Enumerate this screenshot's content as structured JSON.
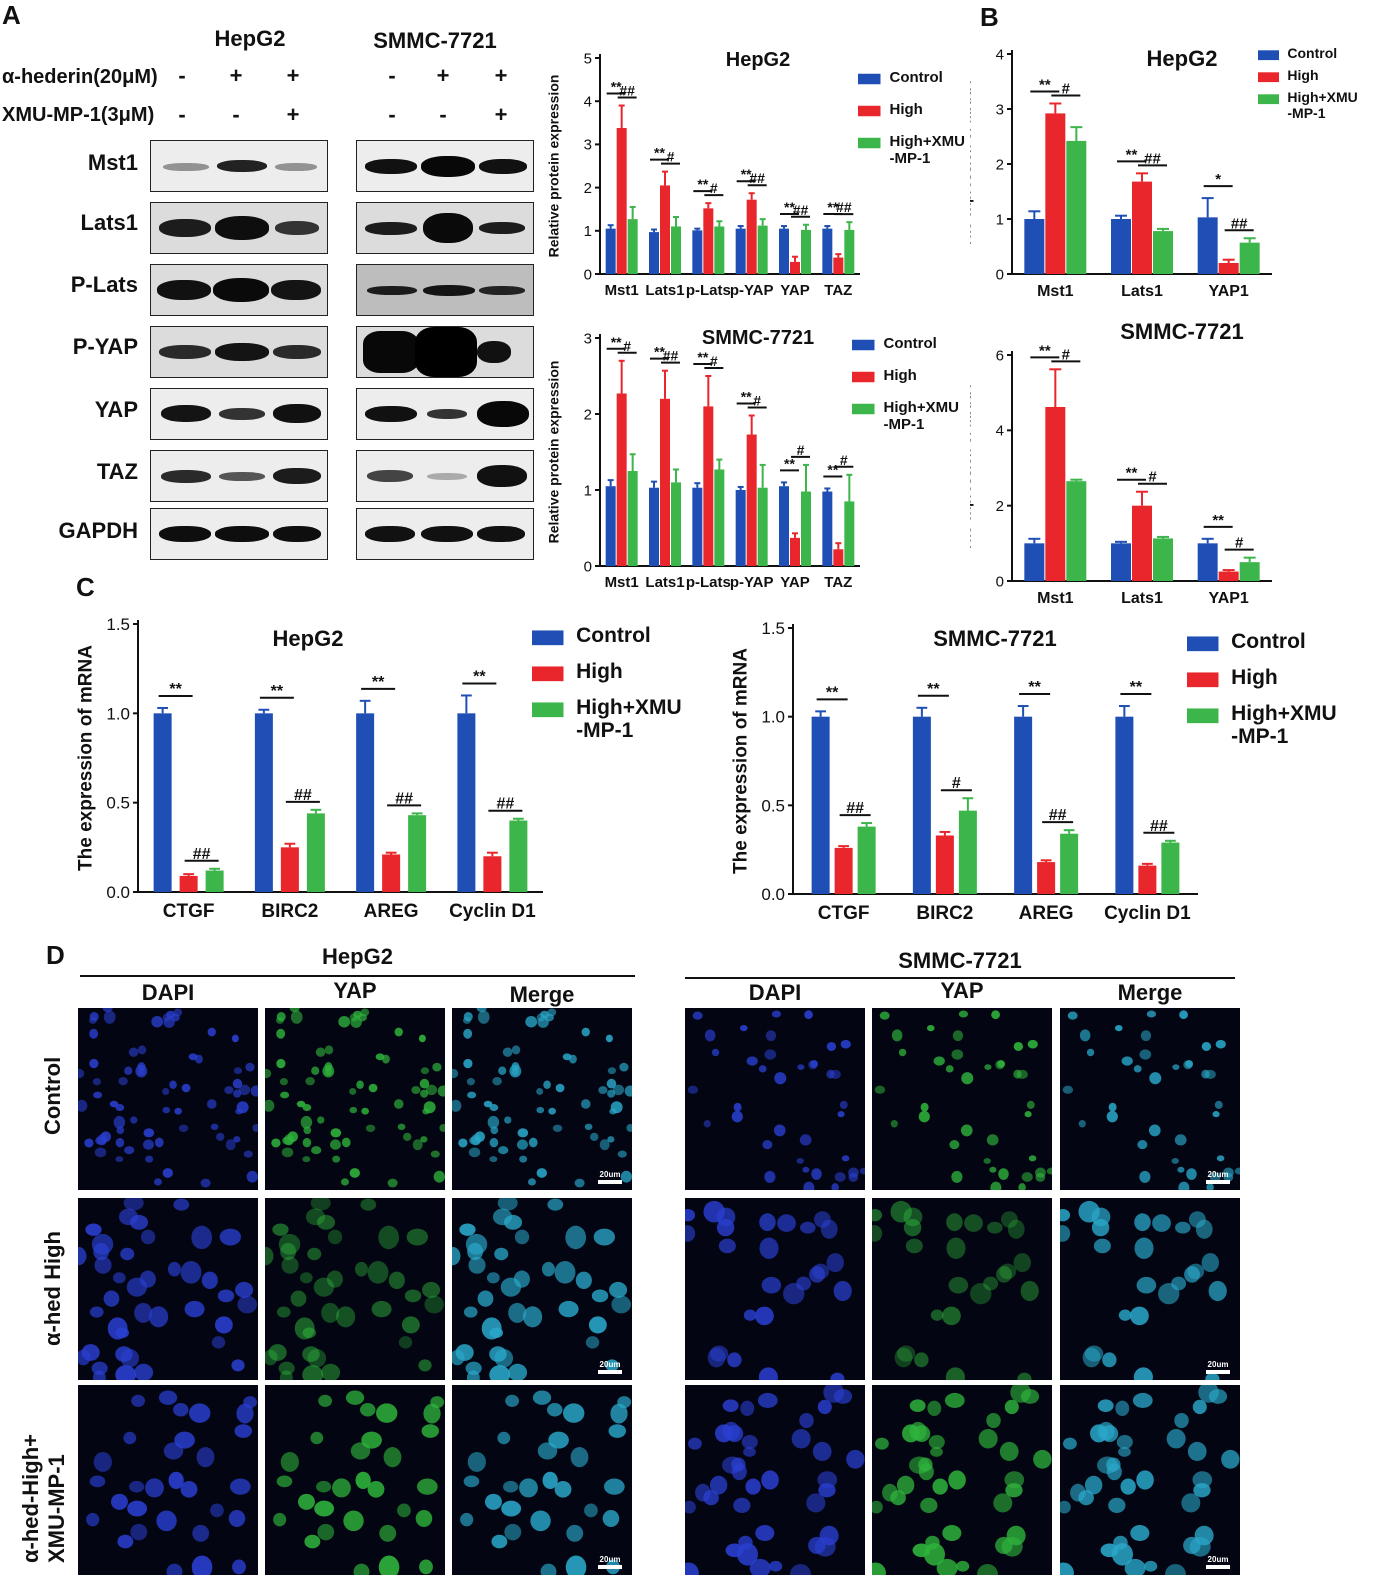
{
  "panels": {
    "a": "A",
    "b": "B",
    "c": "C",
    "d": "D"
  },
  "western_blot": {
    "cell_lines": [
      "HepG2",
      "SMMC-7721"
    ],
    "treatment_rows": [
      {
        "label": "α-hederin(20μM)",
        "signs": [
          "-",
          "+",
          "+"
        ]
      },
      {
        "label": "XMU-MP-1(3μM)",
        "signs": [
          "-",
          "-",
          "+"
        ]
      }
    ],
    "proteins": [
      "Mst1",
      "Lats1",
      "P-Lats",
      "P-YAP",
      "YAP",
      "TAZ",
      "GAPDH"
    ]
  },
  "chart_data": [
    {
      "id": "A-HepG2",
      "type": "bar",
      "title": "HepG2",
      "ylabel": "Relative protein expression",
      "ylim": [
        0,
        5
      ],
      "yticks": [
        0,
        1,
        2,
        3,
        4,
        5
      ],
      "categories": [
        "Mst1",
        "Lats1",
        "p-Lats",
        "p-YAP",
        "YAP",
        "TAZ"
      ],
      "series": [
        {
          "name": "Control",
          "color": "#1f4fb4",
          "values": [
            1.05,
            0.97,
            1.01,
            1.05,
            1.05,
            1.05
          ],
          "errors": [
            0.08,
            0.06,
            0.04,
            0.06,
            0.06,
            0.06
          ]
        },
        {
          "name": "High",
          "color": "#e8262b",
          "values": [
            3.38,
            2.05,
            1.52,
            1.72,
            0.28,
            0.38
          ],
          "errors": [
            0.52,
            0.32,
            0.12,
            0.15,
            0.12,
            0.08
          ]
        },
        {
          "name": "High+XMU\n-MP-1",
          "color": "#3cb54a",
          "values": [
            1.27,
            1.1,
            1.1,
            1.12,
            1.02,
            1.02
          ],
          "errors": [
            0.28,
            0.22,
            0.12,
            0.15,
            0.12,
            0.18
          ]
        }
      ],
      "significance": [
        {
          "a": "**",
          "b": "##"
        },
        {
          "a": "**",
          "b": "#"
        },
        {
          "a": "**",
          "b": "#"
        },
        {
          "a": "**",
          "b": "##"
        },
        {
          "a": "**",
          "b": "##"
        },
        {
          "a": "**",
          "b": "##"
        }
      ]
    },
    {
      "id": "A-SMMC",
      "type": "bar",
      "title": "SMMC-7721",
      "ylabel": "Relative protein expression",
      "ylim": [
        0,
        3
      ],
      "yticks": [
        0,
        1,
        2,
        3
      ],
      "categories": [
        "Mst1",
        "Lats1",
        "p-Lats",
        "p-YAP",
        "YAP",
        "TAZ"
      ],
      "series": [
        {
          "name": "Control",
          "color": "#1f4fb4",
          "values": [
            1.05,
            1.03,
            1.03,
            1.0,
            1.05,
            0.98
          ],
          "errors": [
            0.08,
            0.08,
            0.06,
            0.04,
            0.05,
            0.04
          ]
        },
        {
          "name": "High",
          "color": "#e8262b",
          "values": [
            2.27,
            2.2,
            2.1,
            1.73,
            0.37,
            0.22
          ],
          "errors": [
            0.43,
            0.37,
            0.4,
            0.25,
            0.06,
            0.08
          ]
        },
        {
          "name": "High+XMU\n-MP-1",
          "color": "#3cb54a",
          "values": [
            1.25,
            1.1,
            1.27,
            1.03,
            0.98,
            0.85
          ],
          "errors": [
            0.22,
            0.17,
            0.13,
            0.3,
            0.35,
            0.35
          ]
        }
      ],
      "significance": [
        {
          "a": "**",
          "b": "#"
        },
        {
          "a": "**",
          "b": "##"
        },
        {
          "a": "**",
          "b": "#"
        },
        {
          "a": "**",
          "b": "#"
        },
        {
          "a": "**",
          "b": "#"
        },
        {
          "a": "**",
          "b": "#"
        }
      ]
    },
    {
      "id": "B-HepG2",
      "type": "bar",
      "title": "HepG2",
      "ylabel": "The expression of  mRNA",
      "ylim": [
        0,
        4
      ],
      "yticks": [
        0,
        1,
        2,
        3,
        4
      ],
      "categories": [
        "Mst1",
        "Lats1",
        "YAP1"
      ],
      "series": [
        {
          "name": "Control",
          "color": "#1f4fb4",
          "values": [
            1.0,
            1.0,
            1.03
          ],
          "errors": [
            0.14,
            0.06,
            0.35
          ]
        },
        {
          "name": "High",
          "color": "#e8262b",
          "values": [
            2.92,
            1.68,
            0.2
          ],
          "errors": [
            0.18,
            0.15,
            0.06
          ]
        },
        {
          "name": "High+XMU\n-MP-1",
          "color": "#3cb54a",
          "values": [
            2.42,
            0.78,
            0.57
          ],
          "errors": [
            0.25,
            0.04,
            0.08
          ]
        }
      ],
      "significance": [
        {
          "a": "**",
          "b": "#"
        },
        {
          "a": "**",
          "b": "##"
        },
        {
          "a": "*",
          "b": "##"
        }
      ]
    },
    {
      "id": "B-SMMC",
      "type": "bar",
      "title": "SMMC-7721",
      "ylabel": "The expression of  mRNA",
      "ylim": [
        0,
        6
      ],
      "yticks": [
        0,
        2,
        4,
        6
      ],
      "categories": [
        "Mst1",
        "Lats1",
        "YAP1"
      ],
      "series": [
        {
          "name": "Control",
          "color": "#1f4fb4",
          "values": [
            1.0,
            1.0,
            1.0
          ],
          "errors": [
            0.12,
            0.04,
            0.12
          ]
        },
        {
          "name": "High",
          "color": "#e8262b",
          "values": [
            4.62,
            2.0,
            0.25
          ],
          "errors": [
            1.0,
            0.37,
            0.04
          ]
        },
        {
          "name": "High+XMU\n-MP-1",
          "color": "#3cb54a",
          "values": [
            2.65,
            1.13,
            0.5
          ],
          "errors": [
            0.04,
            0.04,
            0.12
          ]
        }
      ],
      "significance": [
        {
          "a": "**",
          "b": "#"
        },
        {
          "a": "**",
          "b": "#"
        },
        {
          "a": "**",
          "b": "#"
        }
      ]
    },
    {
      "id": "C-HepG2",
      "type": "bar",
      "title": "HepG2",
      "ylabel": "The expression of  mRNA",
      "ylim": [
        0,
        1.5
      ],
      "yticks": [
        "0.0",
        "0.5",
        "1.0",
        "1.5"
      ],
      "categories": [
        "CTGF",
        "BIRC2",
        "AREG",
        "Cyclin D1"
      ],
      "series": [
        {
          "name": "Control",
          "color": "#1f4fb4",
          "values": [
            1.0,
            1.0,
            1.0,
            1.0
          ],
          "errors": [
            0.03,
            0.02,
            0.07,
            0.1
          ]
        },
        {
          "name": "High",
          "color": "#e8262b",
          "values": [
            0.09,
            0.25,
            0.21,
            0.2
          ],
          "errors": [
            0.01,
            0.02,
            0.01,
            0.02
          ]
        },
        {
          "name": "High+XMU\n-MP-1",
          "color": "#3cb54a",
          "values": [
            0.12,
            0.44,
            0.43,
            0.4
          ],
          "errors": [
            0.01,
            0.02,
            0.01,
            0.01
          ]
        }
      ],
      "significance": [
        {
          "a": "**",
          "b": "##"
        },
        {
          "a": "**",
          "b": "##"
        },
        {
          "a": "**",
          "b": "##"
        },
        {
          "a": "**",
          "b": "##"
        }
      ]
    },
    {
      "id": "C-SMMC",
      "type": "bar",
      "title": "SMMC-7721",
      "ylabel": "The expression of  mRNA",
      "ylim": [
        0,
        1.5
      ],
      "yticks": [
        "0.0",
        "0.5",
        "1.0",
        "1.5"
      ],
      "categories": [
        "CTGF",
        "BIRC2",
        "AREG",
        "Cyclin D1"
      ],
      "series": [
        {
          "name": "Control",
          "color": "#1f4fb4",
          "values": [
            1.0,
            1.0,
            1.0,
            1.0
          ],
          "errors": [
            0.03,
            0.05,
            0.06,
            0.06
          ]
        },
        {
          "name": "High",
          "color": "#e8262b",
          "values": [
            0.26,
            0.33,
            0.18,
            0.16
          ],
          "errors": [
            0.01,
            0.02,
            0.01,
            0.01
          ]
        },
        {
          "name": "High+XMU\n-MP-1",
          "color": "#3cb54a",
          "values": [
            0.38,
            0.47,
            0.34,
            0.29
          ],
          "errors": [
            0.02,
            0.07,
            0.02,
            0.01
          ]
        }
      ],
      "significance": [
        {
          "a": "**",
          "b": "##"
        },
        {
          "a": "**",
          "b": "#"
        },
        {
          "a": "**",
          "b": "##"
        },
        {
          "a": "**",
          "b": "##"
        }
      ]
    }
  ],
  "immunofluorescence": {
    "cell_lines": [
      "HepG2",
      "SMMC-7721"
    ],
    "columns": [
      "DAPI",
      "YAP",
      "Merge"
    ],
    "rows": [
      "Control",
      "α-hed High",
      "α-hed-High+\nXMU-MP-1"
    ],
    "scale_bar": "20um",
    "colors": {
      "dapi": "#2a3fd0",
      "yap": "#2fb43c",
      "merge": "#2aa7c9"
    }
  }
}
